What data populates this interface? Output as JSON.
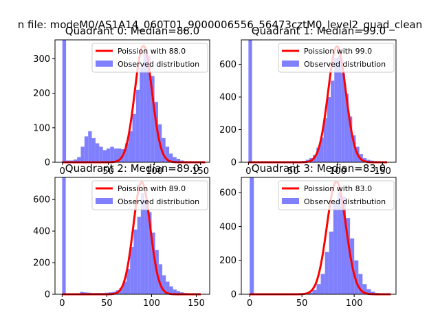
{
  "figure": {
    "suptitle": "n file: modeM0/AS1A14_060T01_9000006556_56473cztM0_level2_quad_clean"
  },
  "colors": {
    "bars": "#8080ff",
    "fit_line": "#ff0000",
    "axis": "#000000",
    "legend_border": "#cccccc"
  },
  "chart_data": [
    {
      "type": "bar",
      "title": "Quadrant 0: Median=88.0",
      "xlim": [
        -8,
        160
      ],
      "ylim": [
        0,
        355
      ],
      "xticks": [
        0,
        50,
        100,
        150
      ],
      "yticks": [
        0,
        100,
        200,
        300
      ],
      "bin_width": 4,
      "hist": [
        [
          0,
          355
        ],
        [
          4,
          5
        ],
        [
          8,
          5
        ],
        [
          12,
          8
        ],
        [
          16,
          15
        ],
        [
          20,
          45
        ],
        [
          24,
          75
        ],
        [
          28,
          90
        ],
        [
          32,
          70
        ],
        [
          36,
          55
        ],
        [
          40,
          45
        ],
        [
          44,
          35
        ],
        [
          48,
          40
        ],
        [
          52,
          45
        ],
        [
          56,
          40
        ],
        [
          60,
          40
        ],
        [
          64,
          38
        ],
        [
          68,
          55
        ],
        [
          72,
          90
        ],
        [
          76,
          140
        ],
        [
          80,
          210
        ],
        [
          84,
          275
        ],
        [
          88,
          315
        ],
        [
          92,
          310
        ],
        [
          96,
          250
        ],
        [
          100,
          175
        ],
        [
          104,
          110
        ],
        [
          108,
          70
        ],
        [
          112,
          45
        ],
        [
          116,
          25
        ],
        [
          120,
          15
        ],
        [
          124,
          10
        ],
        [
          128,
          5
        ],
        [
          132,
          3
        ],
        [
          136,
          2
        ],
        [
          140,
          2
        ],
        [
          144,
          1
        ],
        [
          148,
          1
        ]
      ],
      "poisson_mean": 88.0,
      "fit_peak": 338,
      "fit_x_range": [
        0,
        155
      ],
      "legend": [
        "Poission with 88.0",
        "Observed distribution"
      ]
    },
    {
      "type": "bar",
      "title": "Quadrant 1: Median=99.0",
      "xlim": [
        -8,
        165
      ],
      "ylim": [
        0,
        750
      ],
      "xticks": [
        0,
        50,
        100,
        150
      ],
      "yticks": [
        0,
        200,
        400,
        600
      ],
      "bin_width": 4,
      "hist": [
        [
          0,
          750
        ],
        [
          52,
          2
        ],
        [
          56,
          5
        ],
        [
          60,
          8
        ],
        [
          64,
          15
        ],
        [
          68,
          25
        ],
        [
          72,
          45
        ],
        [
          76,
          90
        ],
        [
          80,
          150
        ],
        [
          84,
          270
        ],
        [
          88,
          400
        ],
        [
          92,
          500
        ],
        [
          96,
          640
        ],
        [
          100,
          655
        ],
        [
          104,
          545
        ],
        [
          108,
          420
        ],
        [
          112,
          280
        ],
        [
          116,
          165
        ],
        [
          120,
          95
        ],
        [
          124,
          50
        ],
        [
          128,
          25
        ],
        [
          132,
          15
        ],
        [
          136,
          10
        ],
        [
          140,
          7
        ],
        [
          144,
          5
        ],
        [
          148,
          3
        ],
        [
          152,
          2
        ]
      ],
      "poisson_mean": 99.0,
      "fit_peak": 710,
      "fit_x_range": [
        0,
        155
      ],
      "legend": [
        "Poission with 99.0",
        "Observed distribution"
      ]
    },
    {
      "type": "bar",
      "title": "Quadrant 2: Median=89.0",
      "xlim": [
        -8,
        165
      ],
      "ylim": [
        0,
        740
      ],
      "xticks": [
        0,
        50,
        100,
        150
      ],
      "yticks": [
        0,
        200,
        400,
        600
      ],
      "bin_width": 4,
      "hist": [
        [
          0,
          740
        ],
        [
          20,
          15
        ],
        [
          24,
          12
        ],
        [
          28,
          10
        ],
        [
          32,
          8
        ],
        [
          36,
          8
        ],
        [
          40,
          8
        ],
        [
          44,
          8
        ],
        [
          48,
          10
        ],
        [
          52,
          12
        ],
        [
          56,
          15
        ],
        [
          60,
          25
        ],
        [
          64,
          40
        ],
        [
          68,
          80
        ],
        [
          72,
          160
        ],
        [
          76,
          300
        ],
        [
          80,
          410
        ],
        [
          84,
          490
        ],
        [
          88,
          640
        ],
        [
          92,
          595
        ],
        [
          96,
          520
        ],
        [
          100,
          390
        ],
        [
          104,
          280
        ],
        [
          108,
          190
        ],
        [
          112,
          120
        ],
        [
          116,
          80
        ],
        [
          120,
          50
        ],
        [
          124,
          30
        ],
        [
          128,
          20
        ],
        [
          132,
          12
        ],
        [
          136,
          8
        ],
        [
          140,
          6
        ],
        [
          144,
          5
        ],
        [
          148,
          3
        ],
        [
          152,
          2
        ],
        [
          156,
          1
        ]
      ],
      "poisson_mean": 89.0,
      "fit_peak": 710,
      "fit_x_range": [
        0,
        155
      ],
      "legend": [
        "Poission with 89.0",
        "Observed distribution"
      ]
    },
    {
      "type": "bar",
      "title": "Quadrant 3: Median=83.0",
      "xlim": [
        -8,
        140
      ],
      "ylim": [
        0,
        690
      ],
      "xticks": [
        0,
        50,
        100
      ],
      "yticks": [
        0,
        200,
        400,
        600
      ],
      "bin_width": 4,
      "hist": [
        [
          0,
          690
        ],
        [
          48,
          2
        ],
        [
          52,
          5
        ],
        [
          56,
          10
        ],
        [
          60,
          25
        ],
        [
          64,
          60
        ],
        [
          68,
          120
        ],
        [
          72,
          250
        ],
        [
          76,
          370
        ],
        [
          80,
          540
        ],
        [
          84,
          600
        ],
        [
          88,
          575
        ],
        [
          92,
          450
        ],
        [
          96,
          330
        ],
        [
          100,
          200
        ],
        [
          104,
          120
        ],
        [
          108,
          60
        ],
        [
          112,
          30
        ],
        [
          116,
          15
        ],
        [
          120,
          8
        ],
        [
          124,
          4
        ],
        [
          128,
          2
        ]
      ],
      "poisson_mean": 83.0,
      "fit_peak": 665,
      "fit_x_range": [
        0,
        135
      ],
      "legend": [
        "Poission with 83.0",
        "Observed distribution"
      ]
    }
  ]
}
